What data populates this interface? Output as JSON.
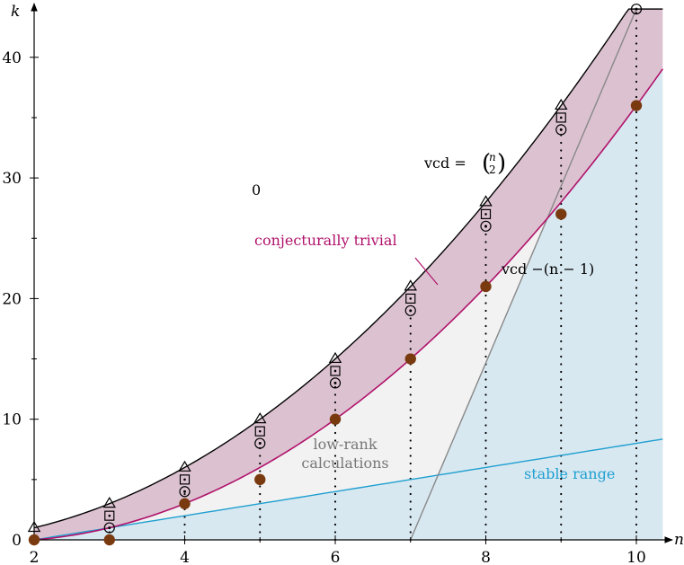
{
  "chart_data": {
    "type": "scatter",
    "title": "",
    "xlabel": "n",
    "ylabel": "k",
    "xlim": [
      2,
      10.35
    ],
    "ylim": [
      0,
      44
    ],
    "xticks": [
      2,
      4,
      6,
      8,
      10
    ],
    "yticks": [
      0,
      10,
      20,
      30,
      40
    ],
    "grid": false,
    "colors": {
      "vcd_curve": "#000000",
      "shift_curve": "#b0126b",
      "band_fill": "#dcc2d0",
      "low_rank_fill": "#f2f2f2",
      "stable_line": "#1e9fd0",
      "stable_fill": "#d8e8f1",
      "dot": "#7a3a10",
      "gray_line": "#888888",
      "pink_text": "#b0126b",
      "blue_text": "#1e9fd0",
      "gray_text": "#777777"
    },
    "curves": {
      "vcd": "n(n-1)/2",
      "vcd_shift": "(n-1)(n-2)/2",
      "stable_range": "k = n - 2"
    },
    "series": [
      {
        "marker": "triangle",
        "x": [
          2,
          3,
          4,
          5,
          6,
          7,
          8,
          9
        ],
        "y": [
          1,
          3,
          6,
          10,
          15,
          21,
          28,
          36
        ]
      },
      {
        "marker": "square",
        "x": [
          3,
          4,
          5,
          6,
          7,
          8,
          9
        ],
        "y": [
          2,
          5,
          9,
          14,
          20,
          27,
          35
        ]
      },
      {
        "marker": "circled-dot",
        "x": [
          3,
          4,
          5,
          6,
          7,
          8,
          9,
          10
        ],
        "y": [
          1,
          4,
          8,
          13,
          19,
          26,
          34,
          44
        ]
      },
      {
        "marker": "filled-dot",
        "x": [
          2,
          3,
          4,
          5,
          6,
          7,
          8,
          9,
          10
        ],
        "y": [
          0,
          0,
          3,
          5,
          10,
          15,
          21,
          27,
          36
        ]
      }
    ],
    "dotted_verticals": [
      {
        "x": 3,
        "y_from": 0,
        "y_to": 1
      },
      {
        "x": 4,
        "y_from": 0,
        "y_to": 4
      },
      {
        "x": 5,
        "y_from": 0,
        "y_to": 8
      },
      {
        "x": 6,
        "y_from": 0,
        "y_to": 13
      },
      {
        "x": 7,
        "y_from": 0,
        "y_to": 19
      },
      {
        "x": 8,
        "y_from": 0,
        "y_to": 26
      },
      {
        "x": 9,
        "y_from": 0,
        "y_to": 34
      },
      {
        "x": 10,
        "y_from": 0,
        "y_to": 44
      }
    ],
    "gray_line": {
      "from": [
        7,
        0
      ],
      "to": [
        10,
        44
      ]
    },
    "annotations": {
      "zero": "0",
      "vcd_prefix": "vcd = ",
      "vcd_binom_top": "n",
      "vcd_binom_bottom": "2",
      "conjectural": "conjecturally trivial",
      "vcd_shift": "vcd −(n − 1)",
      "low_rank_line1": "low-rank",
      "low_rank_line2": "calculations",
      "stable": "stable range"
    }
  }
}
